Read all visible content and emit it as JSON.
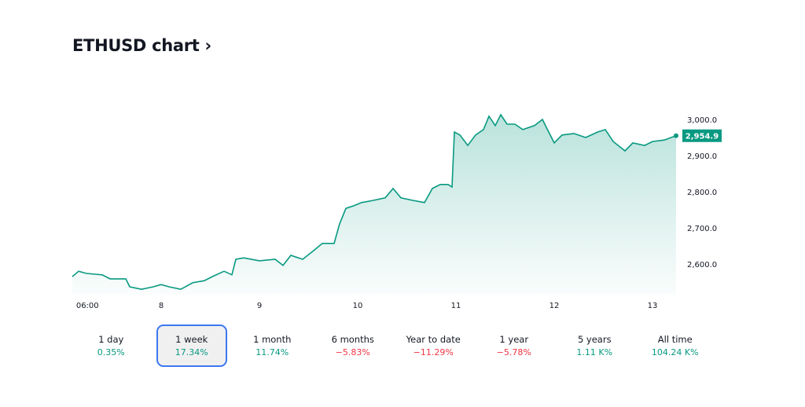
{
  "title": "ETHUSD chart",
  "title_arrow": "›",
  "colors": {
    "line": "#089981",
    "positive": "#089981",
    "negative": "#f23645",
    "active_border": "#3c78f0"
  },
  "chart_data": {
    "type": "area",
    "symbol": "ETHUSD",
    "ylim": [
      2530,
      3020
    ],
    "y_ticks": [
      {
        "value": 3000,
        "label": "3,000.0"
      },
      {
        "value": 2900,
        "label": "2,900.0"
      },
      {
        "value": 2800,
        "label": "2,800.0"
      },
      {
        "value": 2700,
        "label": "2,700.0"
      },
      {
        "value": 2600,
        "label": "2,600.0"
      }
    ],
    "x_ticks": [
      {
        "value": 7.25,
        "label": "06:00"
      },
      {
        "value": 8,
        "label": "8"
      },
      {
        "value": 9,
        "label": "9"
      },
      {
        "value": 10,
        "label": "10"
      },
      {
        "value": 11,
        "label": "11"
      },
      {
        "value": 12,
        "label": "12"
      },
      {
        "value": 13,
        "label": "13"
      }
    ],
    "last_price": {
      "value": 2954.9,
      "label": "2,954.9"
    },
    "x": [
      7.096,
      7.16,
      7.24,
      7.4,
      7.48,
      7.64,
      7.68,
      7.8,
      7.92,
      8,
      8.08,
      8.2,
      8.32,
      8.44,
      8.52,
      8.64,
      8.72,
      8.76,
      8.84,
      9,
      9.16,
      9.24,
      9.32,
      9.44,
      9.56,
      9.64,
      9.76,
      9.816,
      9.88,
      9.96,
      10.04,
      10.16,
      10.28,
      10.36,
      10.44,
      10.56,
      10.68,
      10.76,
      10.84,
      10.92,
      10.96,
      10.984,
      11.04,
      11.12,
      11.2,
      11.28,
      11.336,
      11.4,
      11.456,
      11.52,
      11.6,
      11.68,
      11.8,
      11.88,
      11.92,
      12,
      12.08,
      12.2,
      12.32,
      12.44,
      12.52,
      12.6,
      12.72,
      12.8,
      12.92,
      13,
      13.12,
      13.24
    ],
    "y": [
      2565,
      2580,
      2574,
      2570,
      2559,
      2559,
      2537,
      2530,
      2537,
      2543,
      2537,
      2530,
      2548,
      2554,
      2565,
      2580,
      2570,
      2613,
      2617,
      2609,
      2613,
      2596,
      2624,
      2613,
      2639,
      2657,
      2657,
      2711,
      2754,
      2761,
      2770,
      2776,
      2783,
      2809,
      2783,
      2776,
      2770,
      2809,
      2820,
      2820,
      2813,
      2965,
      2957,
      2928,
      2957,
      2972,
      3009,
      2983,
      3013,
      2987,
      2987,
      2972,
      2983,
      3000,
      2978,
      2935,
      2957,
      2961,
      2950,
      2965,
      2972,
      2939,
      2913,
      2935,
      2928,
      2939,
      2943,
      2954.9
    ]
  },
  "periods": [
    {
      "label": "1 day",
      "change": "0.35%",
      "dir": "pos"
    },
    {
      "label": "1 week",
      "change": "17.34%",
      "dir": "pos",
      "active": true
    },
    {
      "label": "1 month",
      "change": "11.74%",
      "dir": "pos"
    },
    {
      "label": "6 months",
      "change": "−5.83%",
      "dir": "neg"
    },
    {
      "label": "Year to date",
      "change": "−11.29%",
      "dir": "neg"
    },
    {
      "label": "1 year",
      "change": "−5.78%",
      "dir": "neg"
    },
    {
      "label": "5 years",
      "change": "1.11 K%",
      "dir": "pos"
    },
    {
      "label": "All time",
      "change": "104.24 K%",
      "dir": "pos"
    }
  ]
}
